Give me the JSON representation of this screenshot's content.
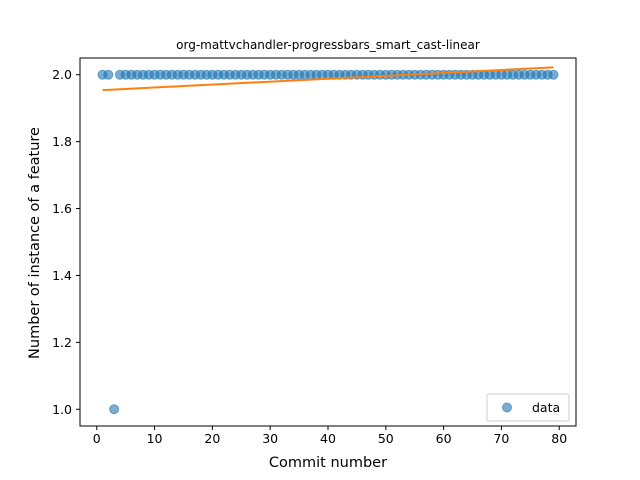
{
  "chart_data": {
    "type": "scatter",
    "title": "org-mattvchandler-progressbars_smart_cast-linear",
    "xlabel": "Commit number",
    "ylabel": "Number of instance of a feature",
    "xlim": [
      -2.9,
      82.9
    ],
    "ylim": [
      0.95,
      2.05
    ],
    "xticks": [
      0,
      10,
      20,
      30,
      40,
      50,
      60,
      70,
      80
    ],
    "yticks": [
      1.0,
      1.2,
      1.4,
      1.6,
      1.8,
      2.0
    ],
    "ytick_labels": [
      "1.0",
      "1.2",
      "1.4",
      "1.6",
      "1.8",
      "2.0"
    ],
    "grid": false,
    "legend_position": "lower-right",
    "series": [
      {
        "name": "data",
        "kind": "scatter",
        "color": "#1f77b4",
        "x": [
          1,
          2,
          3,
          4,
          5,
          6,
          7,
          8,
          9,
          10,
          11,
          12,
          13,
          14,
          15,
          16,
          17,
          18,
          19,
          20,
          21,
          22,
          23,
          24,
          25,
          26,
          27,
          28,
          29,
          30,
          31,
          32,
          33,
          34,
          35,
          36,
          37,
          38,
          39,
          40,
          41,
          42,
          43,
          44,
          45,
          46,
          47,
          48,
          49,
          50,
          51,
          52,
          53,
          54,
          55,
          56,
          57,
          58,
          59,
          60,
          61,
          62,
          63,
          64,
          65,
          66,
          67,
          68,
          69,
          70,
          71,
          72,
          73,
          74,
          75,
          76,
          77,
          78,
          79
        ],
        "y": [
          2,
          2,
          1,
          2,
          2,
          2,
          2,
          2,
          2,
          2,
          2,
          2,
          2,
          2,
          2,
          2,
          2,
          2,
          2,
          2,
          2,
          2,
          2,
          2,
          2,
          2,
          2,
          2,
          2,
          2,
          2,
          2,
          2,
          2,
          2,
          2,
          2,
          2,
          2,
          2,
          2,
          2,
          2,
          2,
          2,
          2,
          2,
          2,
          2,
          2,
          2,
          2,
          2,
          2,
          2,
          2,
          2,
          2,
          2,
          2,
          2,
          2,
          2,
          2,
          2,
          2,
          2,
          2,
          2,
          2,
          2,
          2,
          2,
          2,
          2,
          2,
          2,
          2,
          2
        ]
      },
      {
        "kind": "line",
        "color": "#ff7f0e",
        "x": [
          1,
          79
        ],
        "y": [
          1.954,
          2.022
        ]
      }
    ]
  }
}
